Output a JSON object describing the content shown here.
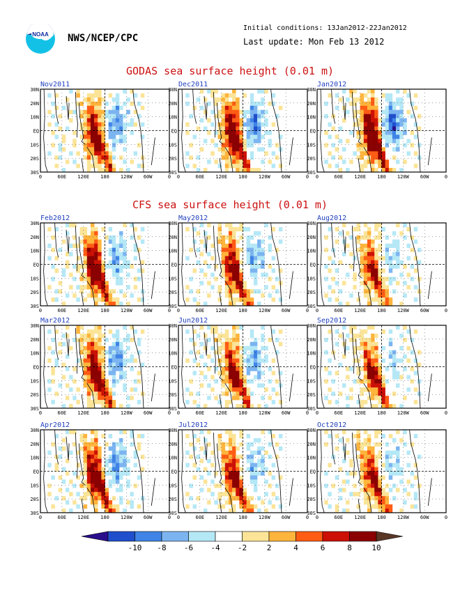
{
  "header": {
    "agency": "NWS/NCEP/CPC",
    "initial_conditions": "Initial conditions: 13Jan2012-22Jan2012",
    "last_update": "Last update: Mon Feb 13 2012",
    "logo_text": "NOAA"
  },
  "sections": {
    "godas_title": "GODAS sea surface height (0.01 m)",
    "cfs_title": "CFS sea surface height (0.01 m)"
  },
  "colors": {
    "title": "#cc1111",
    "panel_label": "#1f3fbf",
    "scale": [
      "#2a0e8c",
      "#1f4fcc",
      "#3f84e6",
      "#7cb4f0",
      "#b5e8f6",
      "#ffffff",
      "#fbe497",
      "#ffb43c",
      "#ff5c14",
      "#cc1005",
      "#8b0000",
      "#5a3626"
    ]
  },
  "chart_data": {
    "type": "heatmap",
    "quantity": "sea surface height anomaly",
    "units": "0.01 m",
    "x_ticks": [
      "0",
      "60E",
      "120E",
      "180",
      "120W",
      "60W",
      "0"
    ],
    "y_ticks": [
      "30N",
      "20N",
      "10N",
      "EQ",
      "10S",
      "20S",
      "30S"
    ],
    "x_range_deg_east": [
      0,
      360
    ],
    "y_range_deg": [
      -30,
      30
    ],
    "colorbar": {
      "ticks": [
        "-10",
        "-8",
        "-6",
        "-4",
        "-2",
        "2",
        "4",
        "6",
        "8",
        "10"
      ]
    },
    "panels": [
      {
        "label": "Nov2011",
        "source": "GODAS",
        "pattern": {
          "west_pos": 10,
          "east_neg": 6,
          "sw_arm": 8
        }
      },
      {
        "label": "Dec2011",
        "source": "GODAS",
        "pattern": {
          "west_pos": 11,
          "east_neg": 7,
          "sw_arm": 8
        }
      },
      {
        "label": "Jan2012",
        "source": "GODAS",
        "pattern": {
          "west_pos": 12,
          "east_neg": 8,
          "sw_arm": 9
        }
      },
      {
        "label": "Feb2012",
        "source": "CFS",
        "pattern": {
          "west_pos": 11,
          "east_neg": 5,
          "sw_arm": 8
        }
      },
      {
        "label": "May2012",
        "source": "CFS",
        "pattern": {
          "west_pos": 9,
          "east_neg": 5,
          "sw_arm": 8
        }
      },
      {
        "label": "Aug2012",
        "source": "CFS",
        "pattern": {
          "west_pos": 7,
          "east_neg": 3,
          "sw_arm": 7
        }
      },
      {
        "label": "Mar2012",
        "source": "CFS",
        "pattern": {
          "west_pos": 10,
          "east_neg": 6,
          "sw_arm": 9
        }
      },
      {
        "label": "Jun2012",
        "source": "CFS",
        "pattern": {
          "west_pos": 8,
          "east_neg": 5,
          "sw_arm": 8
        }
      },
      {
        "label": "Sep2012",
        "source": "CFS",
        "pattern": {
          "west_pos": 7,
          "east_neg": 3,
          "sw_arm": 8
        }
      },
      {
        "label": "Apr2012",
        "source": "CFS",
        "pattern": {
          "west_pos": 10,
          "east_neg": 6,
          "sw_arm": 9
        }
      },
      {
        "label": "Jul2012",
        "source": "CFS",
        "pattern": {
          "west_pos": 8,
          "east_neg": 4,
          "sw_arm": 8
        }
      },
      {
        "label": "Oct2012",
        "source": "CFS",
        "pattern": {
          "west_pos": 7,
          "east_neg": 3,
          "sw_arm": 8
        }
      }
    ]
  }
}
